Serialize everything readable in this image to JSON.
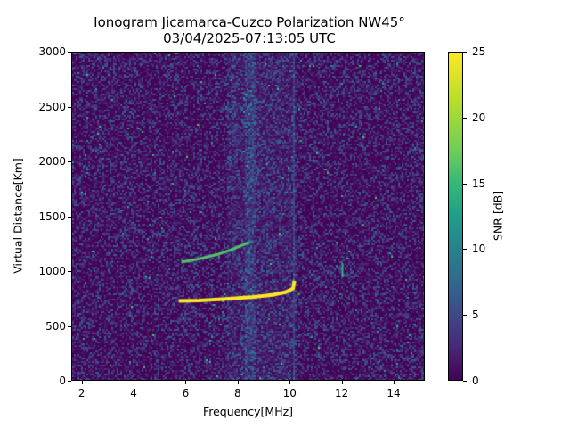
{
  "chart_data": {
    "type": "heatmap",
    "title": "Ionogram Jicamarca-Cuzco Polarization NW45°",
    "subtitle": "03/04/2025-07:13:05 UTC",
    "xlabel": "Frequency[MHz]",
    "ylabel": "Virtual Distance[Km]",
    "xlim": [
      1.6,
      15.2
    ],
    "ylim": [
      0,
      3000
    ],
    "xticks": [
      2,
      4,
      6,
      8,
      10,
      12,
      14
    ],
    "yticks": [
      0,
      500,
      1000,
      1500,
      2000,
      2500,
      3000
    ],
    "colorbar": {
      "label": "SNR [dB]",
      "range": [
        0,
        25
      ],
      "ticks": [
        0,
        5,
        10,
        15,
        20,
        25
      ],
      "colormap": "viridis"
    },
    "grid": false,
    "features": [
      {
        "name": "F-layer trace (1-hop)",
        "snr_db": 25,
        "points": [
          [
            5.7,
            735
          ],
          [
            6.5,
            740
          ],
          [
            7.5,
            755
          ],
          [
            8.5,
            770
          ],
          [
            9.3,
            790
          ],
          [
            9.8,
            815
          ],
          [
            10.1,
            850
          ],
          [
            10.15,
            920
          ]
        ]
      },
      {
        "name": "second-hop trace",
        "snr_db": 18,
        "points": [
          [
            5.8,
            1090
          ],
          [
            6.5,
            1120
          ],
          [
            7.2,
            1160
          ],
          [
            7.8,
            1210
          ],
          [
            8.4,
            1270
          ]
        ]
      },
      {
        "name": "interference line",
        "snr_db": 16,
        "x": 12.0,
        "y_range": [
          950,
          1080
        ]
      },
      {
        "name": "interference band",
        "snr_db": 5,
        "x_range": [
          8.2,
          8.6
        ]
      },
      {
        "name": "interference line",
        "snr_db": 5,
        "x": 10.1
      }
    ]
  }
}
